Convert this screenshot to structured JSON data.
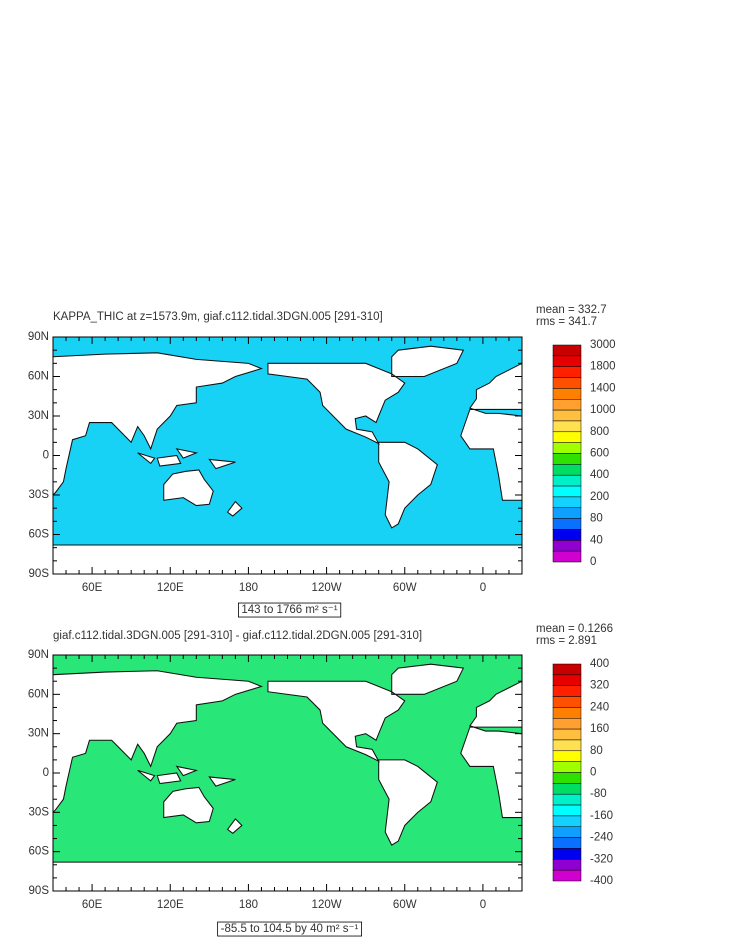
{
  "panels": [
    {
      "title": "KAPPA_THIC at z=1573.9m, giaf.c112.tidal.3DGN.005 [291-310]",
      "stats": [
        "mean = 332.7",
        "rms = 341.7"
      ],
      "ylabels": [
        "90N",
        "60N",
        "30N",
        "0",
        "30S",
        "60S",
        "90S"
      ],
      "xlabels": [
        "60E",
        "120E",
        "180",
        "120W",
        "60W",
        "0"
      ],
      "ocean_color": "#18d2f5",
      "colorbar": {
        "levels": [
          3000,
          1800,
          1400,
          1000,
          800,
          600,
          400,
          200,
          80,
          40,
          0
        ],
        "colors": [
          "#c80000",
          "#e60000",
          "#ff2000",
          "#ff5000",
          "#ff8000",
          "#ffa030",
          "#ffc040",
          "#ffe050",
          "#ffff00",
          "#a0ff00",
          "#30e000",
          "#00dc64",
          "#00f0c8",
          "#00ffff",
          "#14d2ff",
          "#0fa0ff",
          "#0a70ff",
          "#0000f0",
          "#9000d0",
          "#d000d0"
        ]
      },
      "range_label": "143 to 1766 m² s⁻¹"
    },
    {
      "title": "giaf.c112.tidal.3DGN.005 [291-310] - giaf.c112.tidal.2DGN.005 [291-310]",
      "stats": [
        "mean = 0.1266",
        "rms = 2.891"
      ],
      "ylabels": [
        "90N",
        "60N",
        "30N",
        "0",
        "30S",
        "60S",
        "90S"
      ],
      "xlabels": [
        "60E",
        "120E",
        "180",
        "120W",
        "60W",
        "0"
      ],
      "ocean_color": "#28e678",
      "colorbar": {
        "levels": [
          400,
          320,
          240,
          160,
          80,
          0,
          -80,
          -160,
          -240,
          -320,
          -400
        ],
        "colors": [
          "#c80000",
          "#e60000",
          "#ff2000",
          "#ff5000",
          "#ff8000",
          "#ffa030",
          "#ffc040",
          "#ffe050",
          "#ffff00",
          "#a0ff00",
          "#30e000",
          "#00dc64",
          "#00f0c8",
          "#00ffff",
          "#14d2ff",
          "#0fa0ff",
          "#0a70ff",
          "#0000f0",
          "#9000d0",
          "#d000d0"
        ]
      },
      "range_label": "-85.5 to 104.5 by 40 m² s⁻¹"
    }
  ]
}
